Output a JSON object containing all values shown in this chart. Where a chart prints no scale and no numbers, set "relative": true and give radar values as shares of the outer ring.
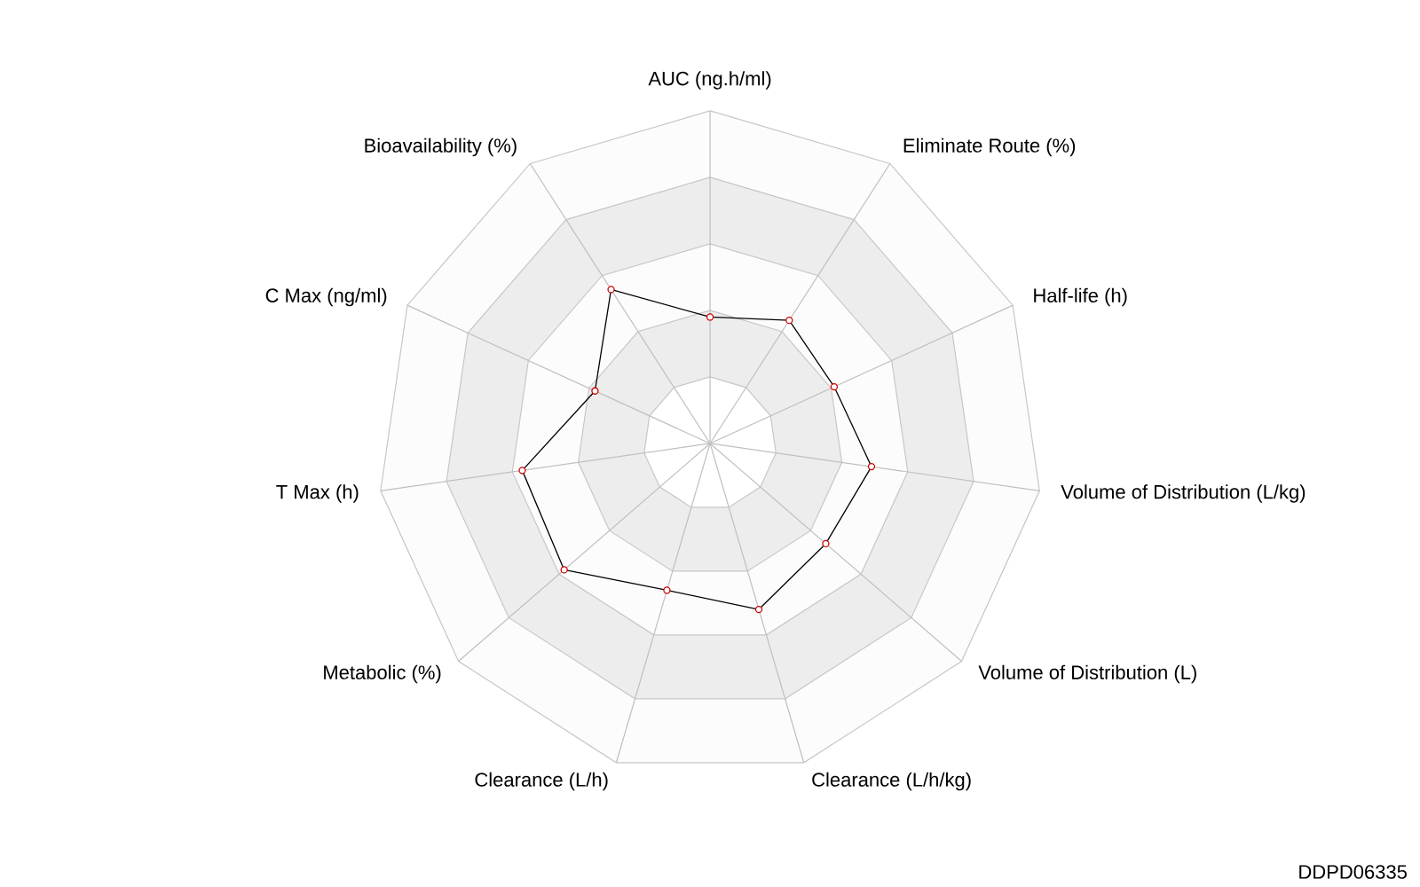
{
  "chart_data": {
    "type": "radar",
    "relative": true,
    "marker": "circle",
    "categories": [
      "AUC (ng.h/ml)",
      "Eliminate Route (%)",
      "Half-life (h)",
      "Volume of Distribution (L/kg)",
      "Volume of Distribution (L)",
      "Clearance (L/h/kg)",
      "Clearance (L/h)",
      "Metabolic (%)",
      "T Max (h)",
      "C Max (ng/ml)",
      "Bioavailability (%)"
    ],
    "series": [
      {
        "color": "#000000",
        "values": [
          0.38,
          0.44,
          0.41,
          0.49,
          0.46,
          0.52,
          0.46,
          0.58,
          0.57,
          0.38,
          0.55
        ]
      }
    ],
    "annotations": [
      "DDPD06335"
    ]
  }
}
